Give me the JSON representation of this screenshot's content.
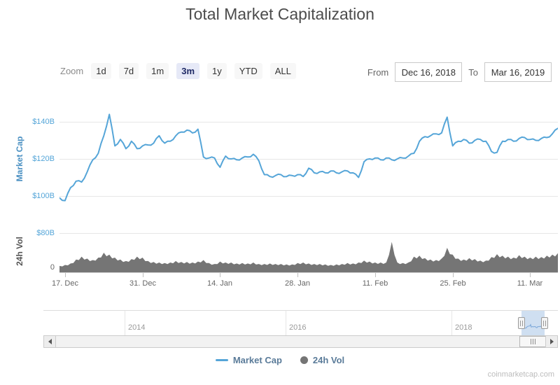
{
  "title": "Total Market Capitalization",
  "toolbar": {
    "zoom_label": "Zoom",
    "zoom_buttons": [
      {
        "label": "1d",
        "selected": false
      },
      {
        "label": "7d",
        "selected": false
      },
      {
        "label": "1m",
        "selected": false
      },
      {
        "label": "3m",
        "selected": true
      },
      {
        "label": "1y",
        "selected": false
      },
      {
        "label": "YTD",
        "selected": false
      },
      {
        "label": "ALL",
        "selected": false
      }
    ],
    "from_label": "From",
    "from_value": "Dec 16, 2018",
    "to_label": "To",
    "to_value": "Mar 16, 2019"
  },
  "colors": {
    "market_cap_line": "#55a5d8",
    "volume_fill": "#757575",
    "axis_label_blue": "#54a5d8",
    "gridline": "#e7e7e7",
    "navigator_selection": "#cfdff1"
  },
  "chart_data": [
    {
      "type": "line",
      "title": "Market Cap",
      "ylabel": "Market Cap",
      "unit": "$B",
      "yticks": [
        "$100B",
        "$120B",
        "$140B"
      ],
      "ylim": [
        95,
        148
      ],
      "x_start": "Dec 16, 2018",
      "x_end": "Mar 16, 2019",
      "x_step": "1 day",
      "xticklabels": [
        "17. Dec",
        "31. Dec",
        "14. Jan",
        "28. Jan",
        "11. Feb",
        "25. Feb",
        "11. Mar"
      ],
      "grid": true,
      "series": [
        {
          "name": "Market Cap",
          "color": "#55a5d8",
          "values": [
            99,
            97.5,
            104.5,
            108,
            107.5,
            113,
            119.5,
            123,
            132.5,
            144,
            127,
            130.5,
            125.5,
            129.5,
            125.5,
            127,
            127.5,
            128.5,
            132.5,
            128.5,
            129.5,
            132.5,
            134.5,
            135.5,
            134,
            136,
            121,
            120.5,
            120.5,
            115.5,
            121.5,
            120,
            119.5,
            120.5,
            121,
            122.5,
            119,
            111.5,
            110.5,
            111,
            111.5,
            110.5,
            111,
            111.5,
            110.5,
            115,
            112.5,
            113,
            112.5,
            113.5,
            112.5,
            113,
            113.5,
            112.5,
            110,
            118.5,
            120,
            120.5,
            119.5,
            120.5,
            119.5,
            120,
            120.5,
            121.5,
            123,
            129.5,
            132,
            132.5,
            133.5,
            134,
            142.5,
            127,
            129.5,
            130.5,
            128.5,
            130,
            130.5,
            129.5,
            124,
            123.5,
            129.5,
            130.5,
            129.5,
            131,
            131.5,
            130.5,
            130,
            131,
            131.5,
            133.5,
            136.5
          ]
        }
      ]
    },
    {
      "type": "area",
      "title": "24h Vol",
      "ylabel": "24h Vol",
      "unit": "$B",
      "yticks": [
        "0",
        "$80B"
      ],
      "ylim": [
        0,
        83
      ],
      "x_start": "Dec 16, 2018",
      "x_end": "Mar 16, 2019",
      "x_step": "1 day",
      "grid": true,
      "series": [
        {
          "name": "24h Vol",
          "color": "#757575",
          "values": [
            13,
            15,
            18,
            26,
            32,
            28,
            25,
            30,
            40,
            36,
            30,
            26,
            23,
            27,
            32,
            30,
            23,
            21,
            20,
            19,
            20,
            23,
            21,
            21,
            20,
            22,
            25,
            19,
            17,
            22,
            20,
            20,
            18,
            19,
            18,
            20,
            17,
            17,
            18,
            17,
            17,
            16,
            16,
            19,
            20,
            18,
            17,
            17,
            16,
            15,
            16,
            17,
            19,
            18,
            20,
            24,
            22,
            20,
            20,
            20,
            62,
            20,
            19,
            20,
            32,
            34,
            29,
            26,
            25,
            28,
            50,
            36,
            28,
            26,
            29,
            27,
            24,
            24,
            31,
            37,
            34,
            32,
            30,
            35,
            32,
            30,
            32,
            31,
            34,
            36,
            39
          ]
        }
      ]
    }
  ],
  "navigator": {
    "years": [
      "2014",
      "2016",
      "2018"
    ]
  },
  "legend": [
    {
      "name": "Market Cap",
      "marker": "line",
      "color": "#55a5d8"
    },
    {
      "name": "24h Vol",
      "marker": "circle",
      "color": "#757575"
    }
  ],
  "attribution": "coinmarketcap.com"
}
